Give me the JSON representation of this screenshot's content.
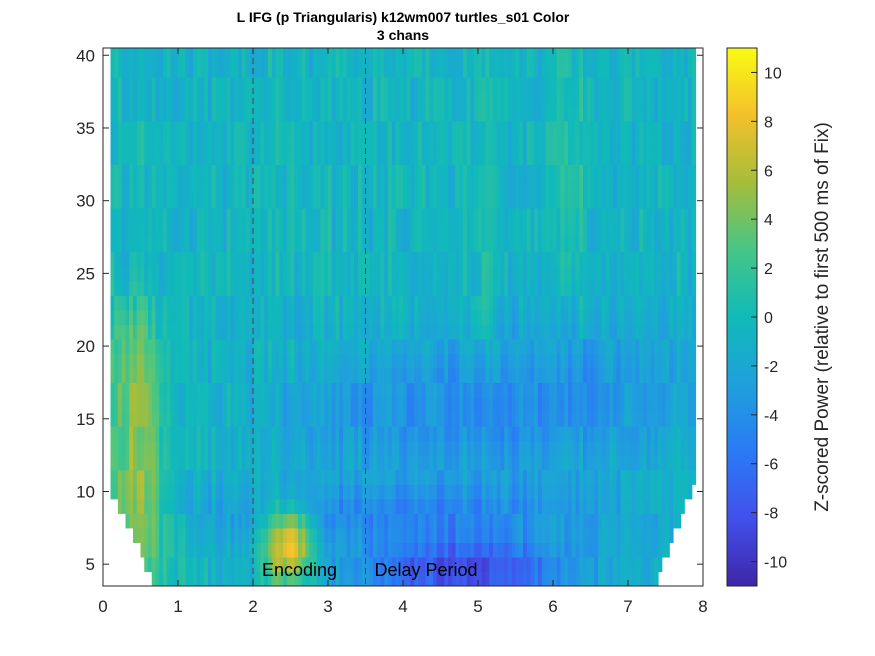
{
  "chart_data": {
    "type": "heatmap",
    "title": "L IFG (p Triangularis) k12wm007 turtles_s01 Color",
    "subtitle": "3 chans",
    "xlabel": "",
    "ylabel": "",
    "xlim": [
      0,
      8
    ],
    "ylim": [
      3.5,
      40.5
    ],
    "x_ticks": [
      "0",
      "1",
      "2",
      "3",
      "4",
      "5",
      "6",
      "7",
      "8"
    ],
    "y_ticks": [
      "5",
      "10",
      "15",
      "20",
      "25",
      "30",
      "35",
      "40"
    ],
    "colorbar": {
      "label": "Z-scored Power (relative to first 500 ms of Fix)",
      "range": [
        -11,
        11
      ],
      "ticks": [
        "10",
        "8",
        "6",
        "4",
        "2",
        "0",
        "-2",
        "-4",
        "-6",
        "-8",
        "-10"
      ],
      "colormap": "parula"
    },
    "markers": [
      {
        "x": 2.0,
        "label": "Encoding"
      },
      {
        "x": 3.5,
        "label": "Delay Period"
      }
    ],
    "time_range": [
      0,
      8
    ],
    "frequency_range": [
      4,
      40
    ],
    "features": [
      {
        "region": "encoding theta/alpha burst",
        "time": [
          2.2,
          2.8
        ],
        "freq": [
          4,
          9
        ],
        "value": 10
      },
      {
        "region": "early low-frequency increase",
        "time": [
          0.1,
          0.8
        ],
        "freq": [
          5,
          20
        ],
        "value": 5
      },
      {
        "region": "delay-period low-frequency suppression",
        "time": [
          3.5,
          6.5
        ],
        "freq": [
          4,
          8
        ],
        "value": -8
      },
      {
        "region": "delay-period beta suppression",
        "time": [
          3.0,
          7.0
        ],
        "freq": [
          12,
          20
        ],
        "value": -4
      }
    ],
    "grid": false
  },
  "colors": {
    "parula_low": "#3e26a8",
    "parula_mid": "#15b1c5",
    "parula_high": "#f9fb15",
    "axis": "#262626",
    "marker_line": "#444444"
  }
}
